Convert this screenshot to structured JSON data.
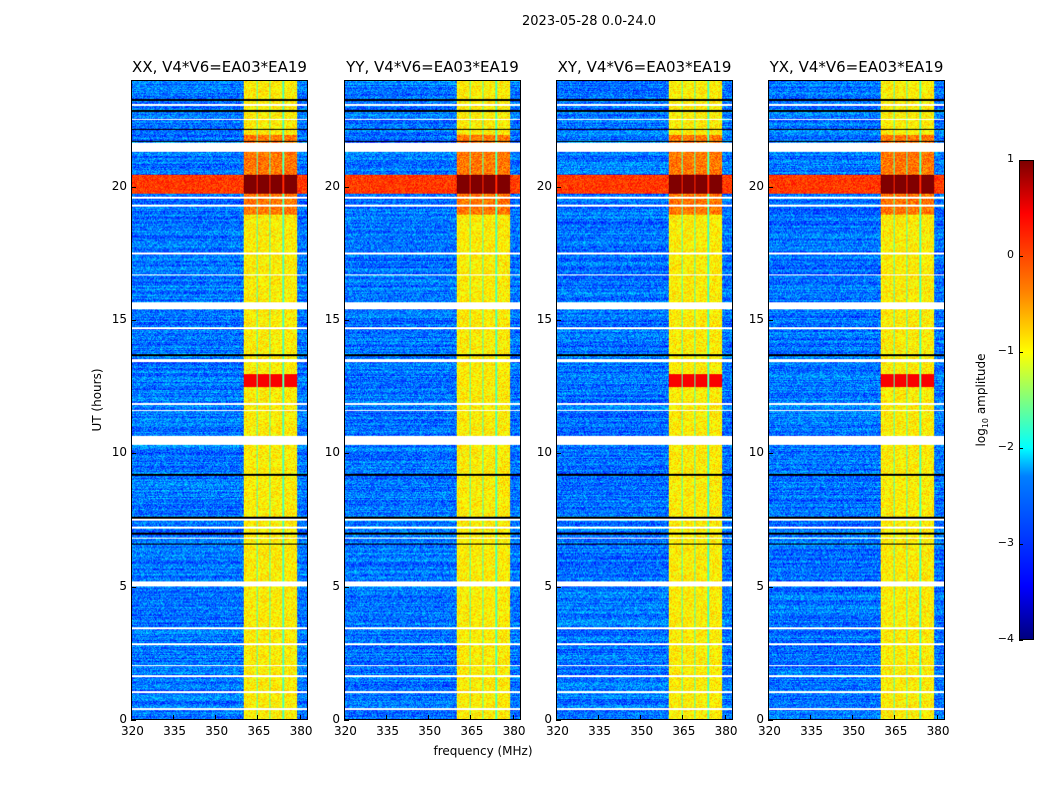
{
  "suptitle": "2023-05-28 0.0-24.0",
  "chart_data": {
    "type": "heatmap",
    "xlabel": "frequency (MHz)",
    "ylabel": "UT (hours)",
    "xlim": [
      320,
      383
    ],
    "ylim": [
      0,
      24
    ],
    "xticks": [
      320,
      335,
      350,
      365,
      380
    ],
    "yticks": [
      0,
      5,
      10,
      15,
      20
    ],
    "panels": [
      {
        "title": "XX, V4*V6=EA03*EA19",
        "band_12_13_strong": true
      },
      {
        "title": "YY, V4*V6=EA03*EA19",
        "band_12_13_strong": false
      },
      {
        "title": "XY, V4*V6=EA03*EA19",
        "band_12_13_strong": true
      },
      {
        "title": "YX, V4*V6=EA03*EA19",
        "band_12_13_strong": true
      }
    ],
    "background_log_amplitude": -2.8,
    "rfi_subbands_mhz": [
      [
        360,
        364.5
      ],
      [
        365,
        369.2
      ],
      [
        369.7,
        374
      ],
      [
        374.5,
        379.3
      ]
    ],
    "rfi_log_amplitude": -0.8,
    "bright_band_hours": [
      19.8,
      20.5
    ],
    "bright_band_log_amplitude": 1,
    "flagged_hours": [
      [
        0.35,
        0.45
      ],
      [
        1.0,
        1.07
      ],
      [
        1.6,
        1.66
      ],
      [
        2.0,
        2.06
      ],
      [
        2.8,
        2.86
      ],
      [
        3.4,
        3.46
      ],
      [
        5.0,
        5.2
      ],
      [
        6.8,
        6.86
      ],
      [
        7.2,
        7.26
      ],
      [
        7.5,
        7.55
      ],
      [
        10.35,
        10.65
      ],
      [
        11.6,
        11.66
      ],
      [
        11.82,
        11.9
      ],
      [
        13.45,
        13.55
      ],
      [
        14.7,
        14.76
      ],
      [
        15.45,
        15.7
      ],
      [
        16.7,
        16.76
      ],
      [
        17.5,
        17.55
      ],
      [
        19.3,
        19.36
      ],
      [
        19.6,
        19.66
      ],
      [
        21.35,
        21.7
      ],
      [
        22.55,
        22.6
      ],
      [
        23.1,
        23.15
      ]
    ],
    "black_lines_hours": [
      6.6,
      7.0,
      7.6,
      9.2,
      13.7,
      21.75,
      22.2,
      22.9,
      23.3
    ],
    "colorbar": {
      "label_prefix": "log",
      "label_sub": "10",
      "label_suffix": " amplitude",
      "range": [
        -4,
        1
      ],
      "ticks": [
        "1",
        "0",
        "−1",
        "−2",
        "−3",
        "−4"
      ],
      "colormap": "jet"
    }
  }
}
